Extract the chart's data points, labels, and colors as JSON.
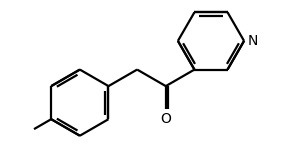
{
  "background_color": "#ffffff",
  "line_color": "#000000",
  "line_width": 1.6,
  "font_size": 10,
  "figsize": [
    2.88,
    1.48
  ],
  "dpi": 100,
  "bl": 1.0
}
